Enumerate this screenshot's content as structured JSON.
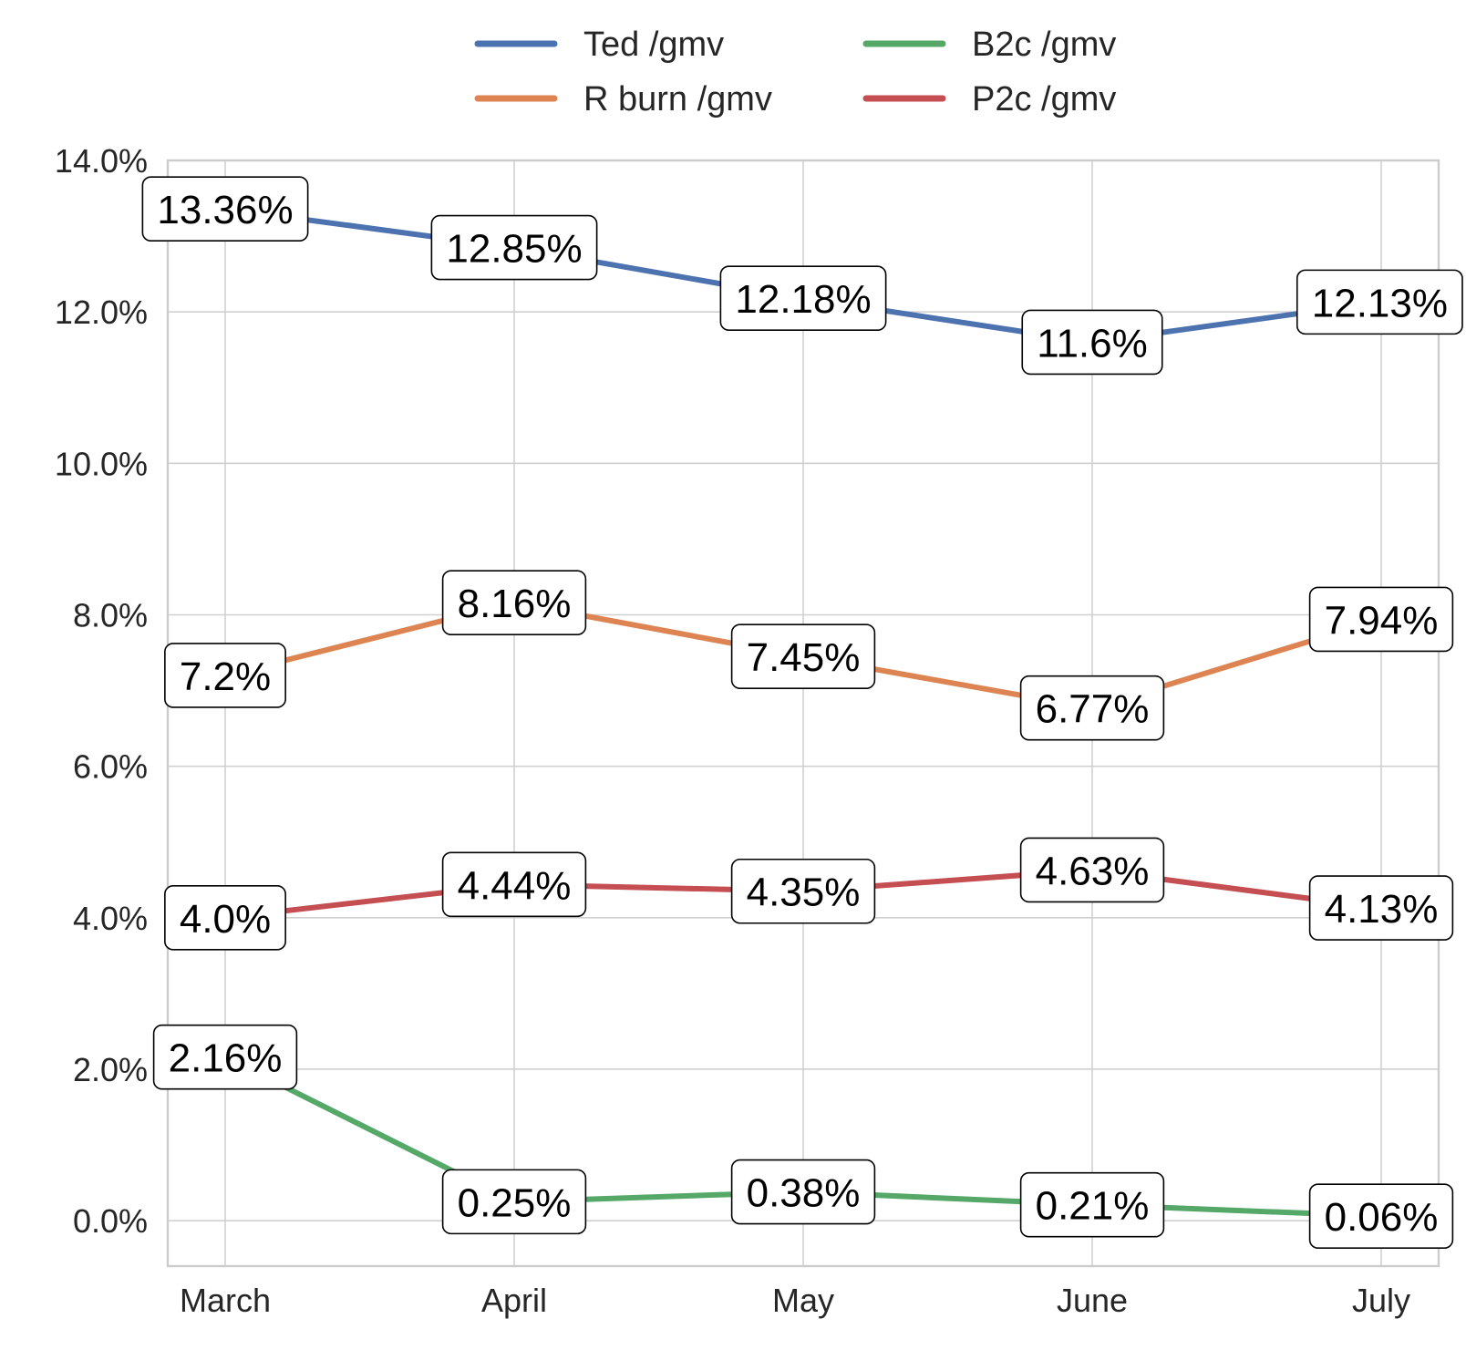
{
  "chart_data": {
    "type": "line",
    "categories": [
      "March",
      "April",
      "May",
      "June",
      "July"
    ],
    "ylim": [
      -0.6,
      14.0
    ],
    "yticks": [
      0.0,
      2.0,
      4.0,
      6.0,
      8.0,
      10.0,
      12.0,
      14.0
    ],
    "ytick_labels": [
      "0.0%",
      "2.0%",
      "4.0%",
      "6.0%",
      "8.0%",
      "10.0%",
      "12.0%",
      "14.0%"
    ],
    "y_unit": "%",
    "grid": true,
    "legend_placement": "top-center",
    "series": [
      {
        "name": "Ted /gmv",
        "color": "#4c72b0",
        "values": [
          13.36,
          12.85,
          12.18,
          11.6,
          12.13
        ],
        "labels": [
          "13.36%",
          "12.85%",
          "12.18%",
          "11.6%",
          "12.13%"
        ]
      },
      {
        "name": "R burn /gmv",
        "color": "#dd8452",
        "values": [
          7.2,
          8.16,
          7.45,
          6.77,
          7.94
        ],
        "labels": [
          "7.2%",
          "8.16%",
          "7.45%",
          "6.77%",
          "7.94%"
        ]
      },
      {
        "name": "B2c /gmv",
        "color": "#55a868",
        "values": [
          2.16,
          0.25,
          0.38,
          0.21,
          0.06
        ],
        "labels": [
          "2.16%",
          "0.25%",
          "0.38%",
          "0.21%",
          "0.06%"
        ]
      },
      {
        "name": "P2c /gmv",
        "color": "#c44e52",
        "values": [
          4.0,
          4.44,
          4.35,
          4.63,
          4.13
        ],
        "labels": [
          "4.0%",
          "4.44%",
          "4.35%",
          "4.63%",
          "4.13%"
        ]
      }
    ]
  }
}
